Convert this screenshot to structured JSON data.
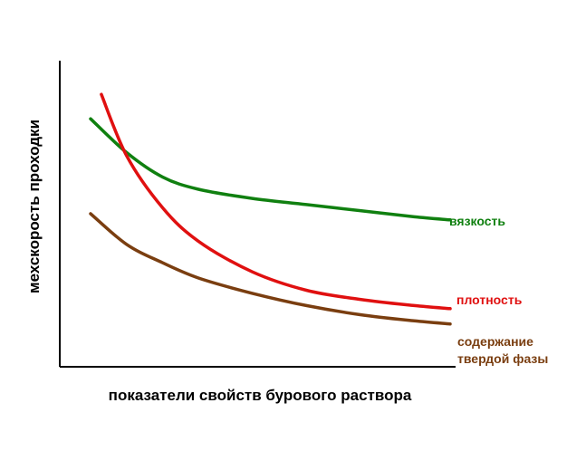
{
  "chart_data": {
    "type": "line",
    "xlabel": "показатели свойств бурового раствора",
    "ylabel": "мехскорость проходки",
    "xlim": [
      0,
      100
    ],
    "ylim": [
      0,
      100
    ],
    "grid": false,
    "legend": "inline labels at line ends",
    "series": [
      {
        "key": "viscosity",
        "name": "вязкость",
        "color": "#108010",
        "x": [
          0,
          10,
          20,
          30,
          45,
          60,
          75,
          90,
          100
        ],
        "y": [
          81,
          70,
          62,
          58,
          55,
          53,
          51,
          49,
          48
        ]
      },
      {
        "key": "density",
        "name": "плотность",
        "color": "#e01010",
        "x": [
          3,
          10,
          20,
          30,
          45,
          60,
          75,
          90,
          100
        ],
        "y": [
          89,
          69,
          52,
          41,
          31,
          25,
          22,
          20,
          19
        ]
      },
      {
        "key": "solids",
        "name_lines": [
          "содержание",
          "твердой фазы"
        ],
        "color": "#7a3e10",
        "x": [
          0,
          10,
          20,
          30,
          45,
          60,
          75,
          90,
          100
        ],
        "y": [
          50,
          40,
          34,
          29,
          24,
          20,
          17,
          15,
          14
        ]
      }
    ]
  }
}
